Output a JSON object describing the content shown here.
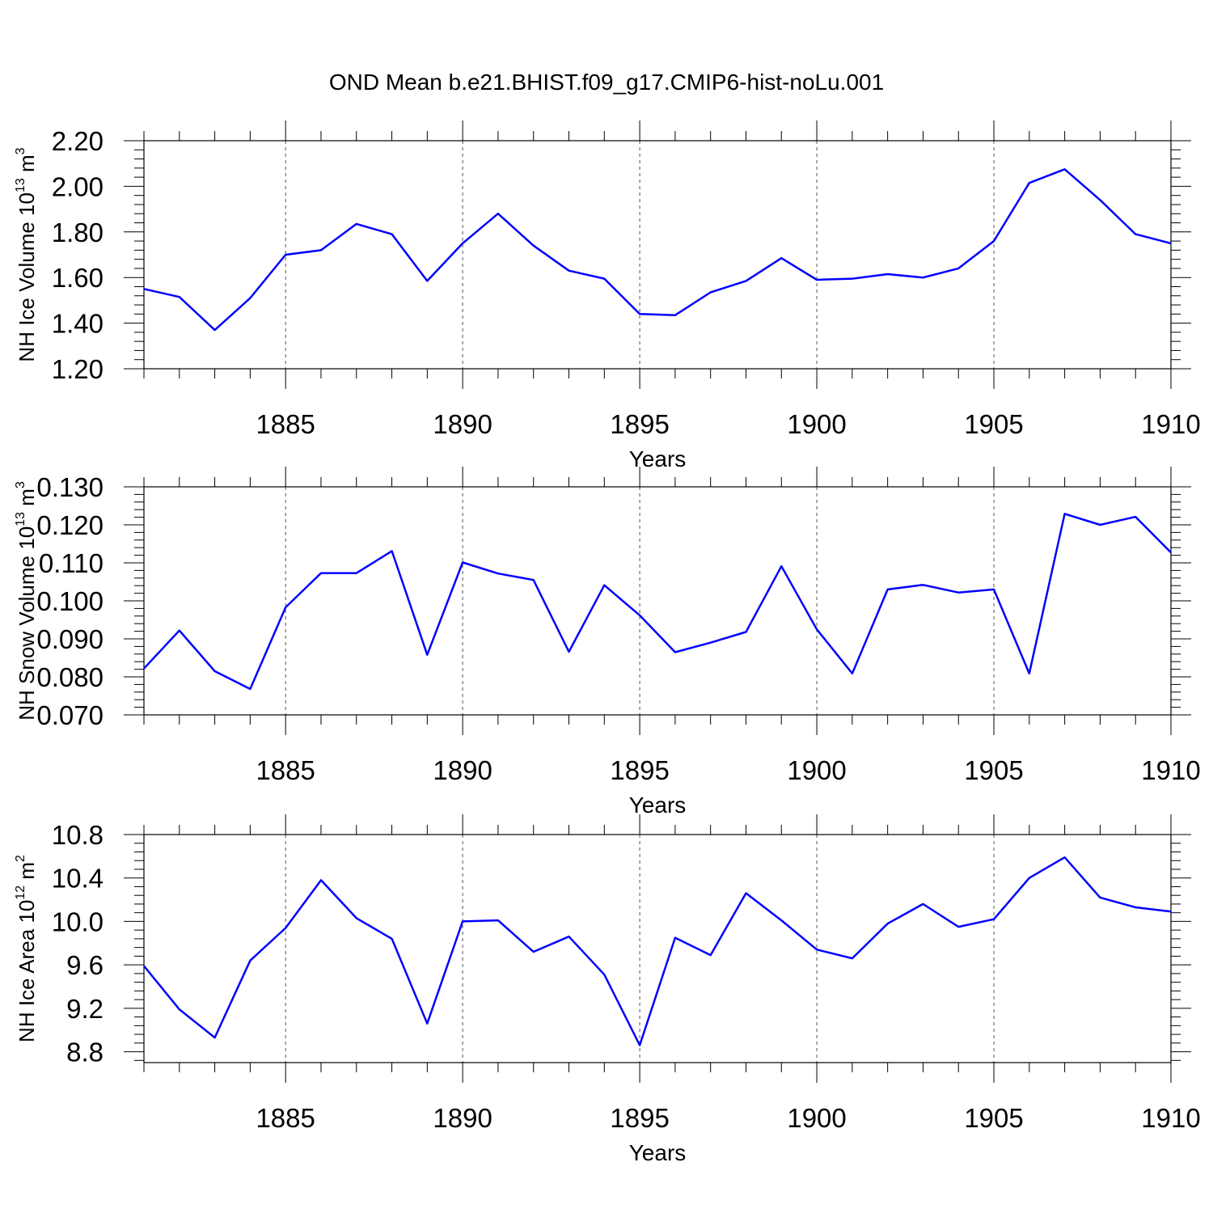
{
  "figure_title": "OND Mean b.e21.BHIST.f09_g17.CMIP6-hist-noLu.001",
  "colors": {
    "line": "#0000ff",
    "axis": "#000000",
    "grid": "#555555",
    "background": "#ffffff"
  },
  "chart_data": [
    {
      "type": "line",
      "title": "",
      "xlabel": "Years",
      "ylabel": {
        "prefix": "NH Ice Volume 10",
        "exp": "13",
        "unit": " m",
        "unit_exp": "3"
      },
      "xlim": [
        1881,
        1910
      ],
      "ylim": [
        1.2,
        2.2
      ],
      "xticks": [
        "1885",
        "1890",
        "1895",
        "1900",
        "1905",
        "1910"
      ],
      "yticks": [
        "1.20",
        "1.40",
        "1.60",
        "1.80",
        "2.00",
        "2.20"
      ],
      "grid": "vertical dashed at major x ticks",
      "series": [
        {
          "name": "NH Ice Volume",
          "x": [
            1881,
            1882,
            1883,
            1884,
            1885,
            1886,
            1887,
            1888,
            1889,
            1890,
            1891,
            1892,
            1893,
            1894,
            1895,
            1896,
            1897,
            1898,
            1899,
            1900,
            1901,
            1902,
            1903,
            1904,
            1905,
            1906,
            1907,
            1908,
            1909,
            1910
          ],
          "values": [
            1.55,
            1.515,
            1.37,
            1.51,
            1.7,
            1.72,
            1.835,
            1.79,
            1.585,
            1.75,
            1.88,
            1.74,
            1.63,
            1.595,
            1.44,
            1.435,
            1.535,
            1.585,
            1.685,
            1.59,
            1.595,
            1.615,
            1.6,
            1.64,
            1.76,
            2.015,
            2.075,
            1.94,
            1.79,
            1.75
          ]
        }
      ]
    },
    {
      "type": "line",
      "title": "",
      "xlabel": "Years",
      "ylabel": {
        "prefix": "NH Snow Volume 10",
        "exp": "13",
        "unit": " m",
        "unit_exp": "3"
      },
      "xlim": [
        1881,
        1910
      ],
      "ylim": [
        0.07,
        0.13
      ],
      "xticks": [
        "1885",
        "1890",
        "1895",
        "1900",
        "1905",
        "1910"
      ],
      "yticks": [
        "0.070",
        "0.080",
        "0.090",
        "0.100",
        "0.110",
        "0.120",
        "0.130"
      ],
      "grid": "vertical dashed at major x ticks",
      "series": [
        {
          "name": "NH Snow Volume",
          "x": [
            1881,
            1882,
            1883,
            1884,
            1885,
            1886,
            1887,
            1888,
            1889,
            1890,
            1891,
            1892,
            1893,
            1894,
            1895,
            1896,
            1897,
            1898,
            1899,
            1900,
            1901,
            1902,
            1903,
            1904,
            1905,
            1906,
            1907,
            1908,
            1909,
            1910
          ],
          "values": [
            0.0822,
            0.0922,
            0.0815,
            0.0768,
            0.0983,
            0.1073,
            0.1073,
            0.1131,
            0.0858,
            0.1101,
            0.1072,
            0.1055,
            0.0866,
            0.1041,
            0.0962,
            0.0865,
            0.089,
            0.0918,
            0.1091,
            0.0925,
            0.0809,
            0.103,
            0.1042,
            0.1022,
            0.103,
            0.0809,
            0.1229,
            0.12,
            0.1221,
            0.1127
          ]
        }
      ]
    },
    {
      "type": "line",
      "title": "",
      "xlabel": "Years",
      "ylabel": {
        "prefix": "NH Ice Area 10",
        "exp": "12",
        "unit": " m",
        "unit_exp": "2"
      },
      "xlim": [
        1881,
        1910
      ],
      "ylim": [
        8.7,
        10.8
      ],
      "xticks": [
        "1885",
        "1890",
        "1895",
        "1900",
        "1905",
        "1910"
      ],
      "yticks": [
        "8.8",
        "9.2",
        "9.6",
        "10.0",
        "10.4",
        "10.8"
      ],
      "grid": "vertical dashed at major x ticks",
      "series": [
        {
          "name": "NH Ice Area",
          "x": [
            1881,
            1882,
            1883,
            1884,
            1885,
            1886,
            1887,
            1888,
            1889,
            1890,
            1891,
            1892,
            1893,
            1894,
            1895,
            1896,
            1897,
            1898,
            1899,
            1900,
            1901,
            1902,
            1903,
            1904,
            1905,
            1906,
            1907,
            1908,
            1909,
            1910
          ],
          "values": [
            9.59,
            9.19,
            8.93,
            9.64,
            9.94,
            10.38,
            10.03,
            9.84,
            9.06,
            10.0,
            10.01,
            9.72,
            9.86,
            9.51,
            8.86,
            9.85,
            9.69,
            10.26,
            10.01,
            9.74,
            9.66,
            9.98,
            10.16,
            9.95,
            10.02,
            10.4,
            10.59,
            10.22,
            10.13,
            10.09
          ]
        }
      ]
    }
  ]
}
